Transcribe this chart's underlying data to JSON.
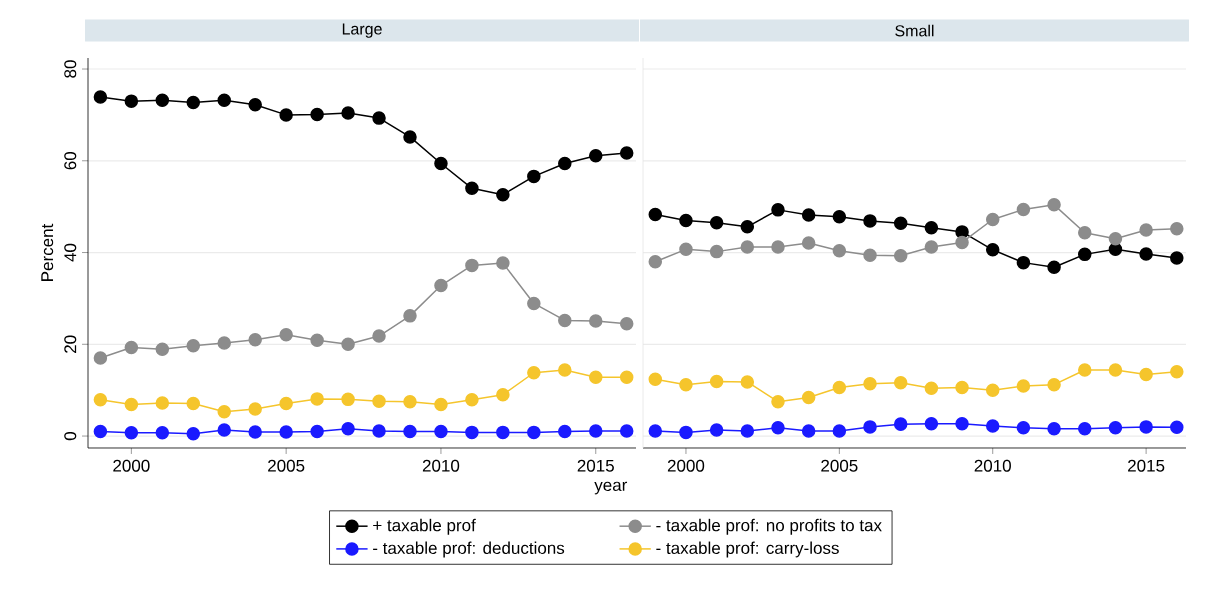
{
  "chart_data": [
    {
      "type": "line",
      "title": "Large",
      "ylabel": "Percent",
      "xlabel": "year",
      "x": [
        1999,
        2000,
        2001,
        2002,
        2003,
        2004,
        2005,
        2006,
        2007,
        2008,
        2009,
        2010,
        2011,
        2012,
        2013,
        2014,
        2015,
        2016
      ],
      "xlim": [
        1998.6,
        2016.3
      ],
      "xticks": [
        2000,
        2005,
        2010,
        2015
      ],
      "ylim": [
        -2.6,
        82.4
      ],
      "yticks": [
        0,
        20,
        40,
        60,
        80
      ],
      "grid": "y",
      "legend": "bottom",
      "marker": "circle",
      "line_style": "solid",
      "series": [
        {
          "name": "+ taxable prof",
          "color": "#000000",
          "values": [
            73.9,
            73.0,
            73.2,
            72.7,
            73.2,
            72.2,
            70.0,
            70.1,
            70.4,
            69.3,
            65.2,
            59.4,
            54.0,
            52.6,
            56.6,
            59.4,
            61.1,
            61.7
          ]
        },
        {
          "name": "- taxable prof: no profits to tax",
          "color": "#8c8c8c",
          "values": [
            17.0,
            19.3,
            18.9,
            19.7,
            20.3,
            21.0,
            22.1,
            20.9,
            20.0,
            21.8,
            26.2,
            32.8,
            37.2,
            37.7,
            28.9,
            25.2,
            25.1,
            24.5
          ]
        },
        {
          "name": "- taxable prof: deductions",
          "color": "#1a1aff",
          "values": [
            1.0,
            0.7,
            0.7,
            0.5,
            1.3,
            0.9,
            0.9,
            1.0,
            1.6,
            1.1,
            1.0,
            1.0,
            0.8,
            0.8,
            0.8,
            1.0,
            1.1,
            1.1
          ]
        },
        {
          "name": "- taxable prof: carry-loss",
          "color": "#f5c52c",
          "values": [
            7.9,
            6.9,
            7.2,
            7.1,
            5.3,
            5.9,
            7.1,
            8.1,
            8.0,
            7.6,
            7.5,
            6.9,
            7.9,
            9.0,
            13.8,
            14.4,
            12.8,
            12.8
          ]
        }
      ]
    },
    {
      "type": "line",
      "title": "Small",
      "x": [
        1999,
        2000,
        2001,
        2002,
        2003,
        2004,
        2005,
        2006,
        2007,
        2008,
        2009,
        2010,
        2011,
        2012,
        2013,
        2014,
        2015,
        2016
      ],
      "xlim": [
        1998.6,
        2016.3
      ],
      "xticks": [
        2000,
        2005,
        2010,
        2015
      ],
      "ylim": [
        -2.6,
        82.4
      ],
      "yticks": [
        0,
        20,
        40,
        60,
        80
      ],
      "grid": "y",
      "marker": "circle",
      "line_style": "solid",
      "tick_labels": "x",
      "series": [
        {
          "color": "#000000",
          "values": [
            48.3,
            47.0,
            46.5,
            45.6,
            49.3,
            48.2,
            47.8,
            46.9,
            46.4,
            45.4,
            44.5,
            40.6,
            37.8,
            36.8,
            39.6,
            40.7,
            39.7,
            38.8
          ]
        },
        {
          "color": "#8c8c8c",
          "values": [
            38.0,
            40.7,
            40.2,
            41.2,
            41.2,
            42.1,
            40.4,
            39.4,
            39.3,
            41.2,
            42.2,
            47.2,
            49.4,
            50.4,
            44.3,
            43.0,
            44.9,
            45.2
          ]
        },
        {
          "color": "#1a1aff",
          "values": [
            1.1,
            0.8,
            1.3,
            1.1,
            1.8,
            1.1,
            1.1,
            2.0,
            2.6,
            2.7,
            2.7,
            2.2,
            1.8,
            1.6,
            1.6,
            1.8,
            2.0,
            1.9
          ]
        },
        {
          "color": "#f5c52c",
          "values": [
            12.4,
            11.2,
            11.9,
            11.8,
            7.5,
            8.4,
            10.6,
            11.4,
            11.6,
            10.4,
            10.6,
            10.0,
            10.9,
            11.2,
            14.4,
            14.4,
            13.4,
            14.0
          ]
        }
      ]
    }
  ]
}
